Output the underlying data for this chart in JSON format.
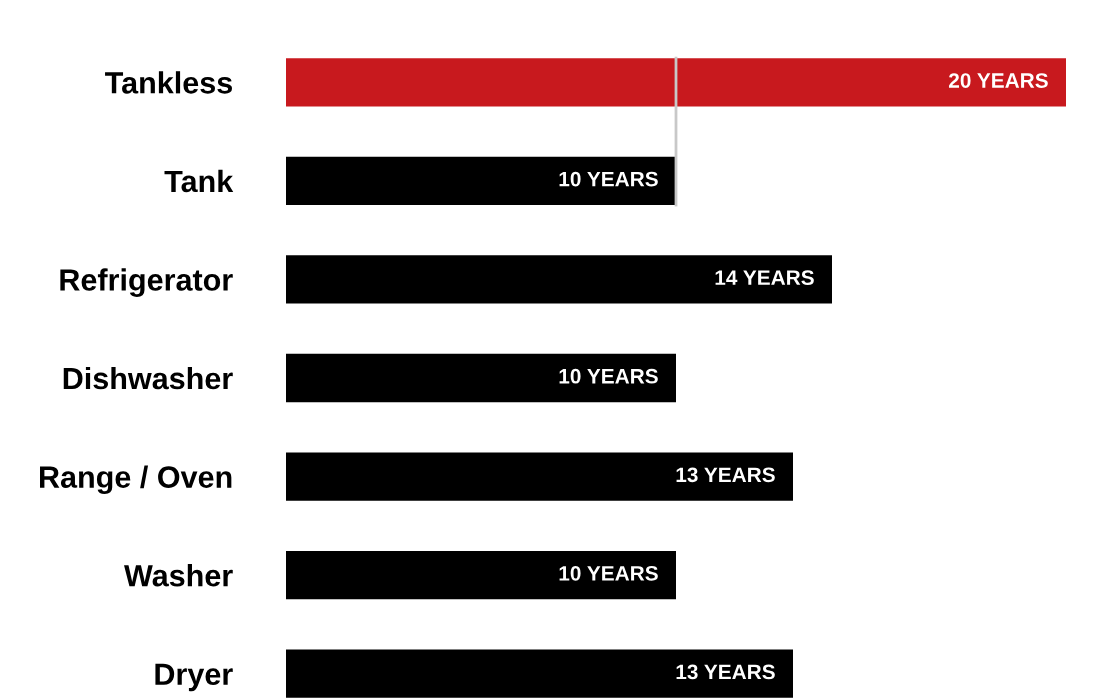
{
  "chart_data": {
    "type": "bar",
    "orientation": "horizontal",
    "categories": [
      "Tankless",
      "Tank",
      "Refrigerator",
      "Dishwasher",
      "Range / Oven",
      "Washer",
      "Dryer"
    ],
    "values": [
      20,
      10,
      14,
      10,
      13,
      10,
      13
    ],
    "colors": [
      "#c8191e",
      "#000000",
      "#000000",
      "#000000",
      "#000000",
      "#000000",
      "#000000"
    ],
    "value_labels": [
      "20 YEARS",
      "10 YEARS",
      "14 YEARS",
      "10 YEARS",
      "13 YEARS",
      "10 YEARS",
      "13 YEARS"
    ],
    "ref_lines": [
      {
        "axis": "x",
        "value": 10,
        "color": "#c8c8c8"
      }
    ],
    "grid": false,
    "legend": false
  }
}
